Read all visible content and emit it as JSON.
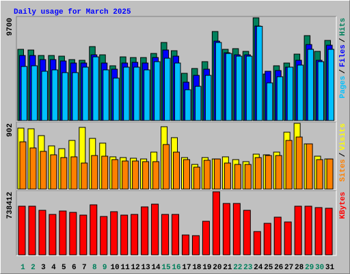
{
  "title": "Daily usage for March 2025",
  "categories": [
    "1",
    "2",
    "3",
    "4",
    "5",
    "6",
    "7",
    "8",
    "9",
    "10",
    "11",
    "12",
    "13",
    "14",
    "15",
    "16",
    "17",
    "18",
    "19",
    "20",
    "21",
    "22",
    "23",
    "24",
    "25",
    "26",
    "27",
    "28",
    "29",
    "30",
    "31"
  ],
  "category_colors": [
    "#00805c",
    "#00805c",
    "#000000",
    "#000000",
    "#000000",
    "#000000",
    "#000000",
    "#00805c",
    "#00805c",
    "#000000",
    "#000000",
    "#000000",
    "#000000",
    "#000000",
    "#00805c",
    "#00805c",
    "#000000",
    "#000000",
    "#000000",
    "#000000",
    "#000000",
    "#00805c",
    "#00805c",
    "#000000",
    "#000000",
    "#000000",
    "#000000",
    "#000000",
    "#00805c",
    "#00805c",
    "#000000"
  ],
  "separator": "/",
  "chart_data": [
    {
      "type": "bar",
      "ylim": [
        0,
        9700
      ],
      "yticks": [
        9700
      ],
      "series": [
        {
          "name": "Hits",
          "color": "#00805c",
          "values": [
            6725,
            6661,
            6143,
            6143,
            6079,
            5755,
            5691,
            6984,
            6208,
            5173,
            6014,
            5949,
            5949,
            6337,
            7372,
            6596,
            4462,
            4915,
            5561,
            8407,
            6725,
            6790,
            6531,
            9700,
            4397,
            5173,
            5432,
            6273,
            8019,
            6531,
            7566
          ]
        },
        {
          "name": "Files",
          "color": "#0000ff",
          "values": [
            6143,
            6143,
            5755,
            5755,
            5626,
            5432,
            5432,
            6208,
            5432,
            4850,
            5432,
            5497,
            5432,
            5949,
            6661,
            6079,
            3621,
            4268,
            4850,
            7501,
            6402,
            6208,
            6208,
            8924,
            4656,
            4721,
            5044,
            5691,
            7178,
            5691,
            7113
          ]
        },
        {
          "name": "Pages",
          "color": "#00c0ff",
          "values": [
            5109,
            5173,
            4656,
            4785,
            4527,
            4527,
            5044,
            6014,
            4785,
            4009,
            5044,
            5044,
            4785,
            5561,
            5885,
            5432,
            2910,
            3233,
            4268,
            7372,
            6337,
            6079,
            6079,
            8900,
            3557,
            4139,
            5044,
            5238,
            6725,
            5561,
            6725
          ]
        }
      ]
    },
    {
      "type": "bar",
      "ylim": [
        0,
        902
      ],
      "yticks": [
        902
      ],
      "series": [
        {
          "name": "Visits",
          "color": "#ffff00",
          "values": [
            836,
            827,
            733,
            592,
            554,
            667,
            846,
            695,
            630,
            442,
            432,
            423,
            413,
            507,
            855,
            705,
            432,
            338,
            432,
            413,
            442,
            404,
            376,
            479,
            470,
            507,
            780,
            902,
            620,
            451,
            413
          ]
        },
        {
          "name": "Sites",
          "color": "#ff8000",
          "values": [
            648,
            564,
            517,
            470,
            432,
            442,
            357,
            460,
            451,
            404,
            385,
            385,
            376,
            376,
            611,
            507,
            404,
            301,
            395,
            413,
            357,
            338,
            338,
            432,
            460,
            460,
            667,
            714,
            620,
            404,
            413
          ]
        }
      ]
    },
    {
      "type": "bar",
      "ylim": [
        0,
        738412
      ],
      "yticks": [
        738412
      ],
      "series": [
        {
          "name": "KBytes",
          "color": "#ff0000",
          "values": [
            569860,
            569860,
            521703,
            473546,
            513677,
            497624,
            465520,
            585913,
            449467,
            505651,
            465520,
            473546,
            561834,
            593939,
            473546,
            473546,
            232760,
            224734,
            393284,
            738412,
            601965,
            601965,
            521703,
            272891,
            369205,
            441441,
            385258,
            569860,
            569860,
            553808,
            545782
          ]
        }
      ]
    }
  ]
}
